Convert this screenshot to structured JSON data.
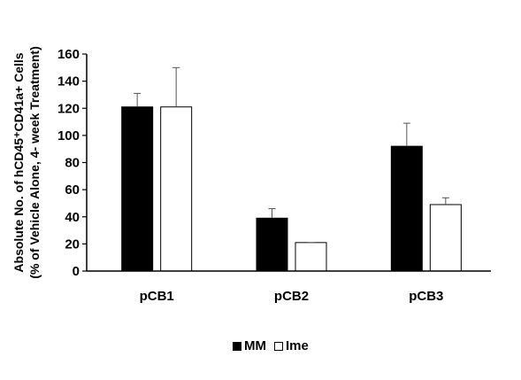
{
  "chart_data": {
    "type": "bar",
    "categories": [
      "pCB1",
      "pCB2",
      "pCB3"
    ],
    "series": [
      {
        "name": "MM",
        "values": [
          121,
          39,
          92
        ],
        "errors": [
          10,
          7,
          17
        ],
        "color": "#000000"
      },
      {
        "name": "Ime",
        "values": [
          121,
          21,
          49
        ],
        "errors": [
          29,
          0,
          5
        ],
        "color": "#ffffff"
      }
    ],
    "title": "",
    "xlabel": "",
    "ylabel": [
      "Absolute No. of hCD45⁺CD41a+ Cells",
      "(% of Vehicle Alone, 4- week Treatment)"
    ],
    "ylim": [
      0,
      160
    ],
    "yticks": [
      "0",
      "20",
      "40",
      "60",
      "80",
      "100",
      "120",
      "140",
      "160"
    ],
    "grid": false,
    "legend": "bottom"
  }
}
